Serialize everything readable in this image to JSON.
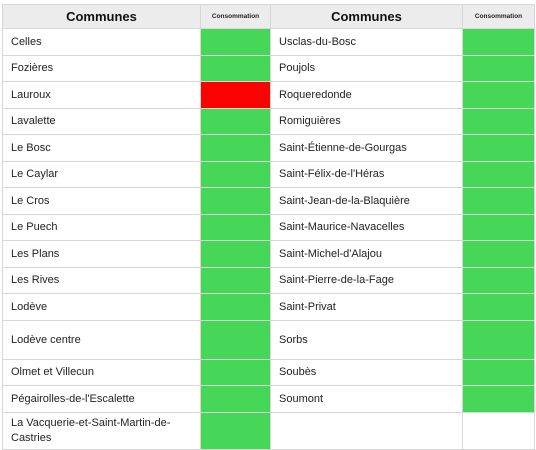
{
  "header": {
    "communes_left": "Communes",
    "consommation_left": "Consommation",
    "communes_right": "Communes",
    "consommation_right": "Consommation"
  },
  "colors": {
    "green": "#46d758",
    "red": "#ff0000"
  },
  "rows": [
    {
      "left": {
        "name": "Celles",
        "status": "green"
      },
      "right": {
        "name": "Usclas-du-Bosc",
        "status": "green"
      }
    },
    {
      "left": {
        "name": "Fozières",
        "status": "green"
      },
      "right": {
        "name": "Poujols",
        "status": "green"
      }
    },
    {
      "left": {
        "name": "Lauroux",
        "status": "red"
      },
      "right": {
        "name": "Roqueredonde",
        "status": "green"
      }
    },
    {
      "left": {
        "name": "Lavalette",
        "status": "green"
      },
      "right": {
        "name": "Romiguières",
        "status": "green"
      }
    },
    {
      "left": {
        "name": "Le Bosc",
        "status": "green"
      },
      "right": {
        "name": "Saint-Étienne-de-Gourgas",
        "status": "green"
      }
    },
    {
      "left": {
        "name": "Le Caylar",
        "status": "green"
      },
      "right": {
        "name": "Saint-Félix-de-l'Héras",
        "status": "green"
      }
    },
    {
      "left": {
        "name": "Le Cros",
        "status": "green"
      },
      "right": {
        "name": "Saint-Jean-de-la-Blaquière",
        "status": "green"
      }
    },
    {
      "left": {
        "name": "Le Puech",
        "status": "green"
      },
      "right": {
        "name": "Saint-Maurice-Navacelles",
        "status": "green"
      }
    },
    {
      "left": {
        "name": "Les Plans",
        "status": "green"
      },
      "right": {
        "name": "Saint-Michel-d'Alajou",
        "status": "green"
      }
    },
    {
      "left": {
        "name": "Les Rives",
        "status": "green"
      },
      "right": {
        "name": "Saint-Pierre-de-la-Fage",
        "status": "green"
      }
    },
    {
      "left": {
        "name": "Lodève",
        "status": "green"
      },
      "right": {
        "name": "Saint-Privat",
        "status": "green"
      }
    },
    {
      "left": {
        "name": "Lodève centre",
        "status": "green"
      },
      "right": {
        "name": "Sorbs",
        "status": "green"
      }
    },
    {
      "left": {
        "name": "Olmet et Villecun",
        "status": "green"
      },
      "right": {
        "name": "Soubès",
        "status": "green"
      }
    },
    {
      "left": {
        "name": "Pégairolles-de-l'Escalette",
        "status": "green"
      },
      "right": {
        "name": "Soumont",
        "status": "green"
      }
    },
    {
      "left": {
        "name": "La Vacquerie-et-Saint-Martin-de-Castries",
        "status": "green"
      },
      "right": {
        "name": "",
        "status": "empty"
      }
    }
  ]
}
